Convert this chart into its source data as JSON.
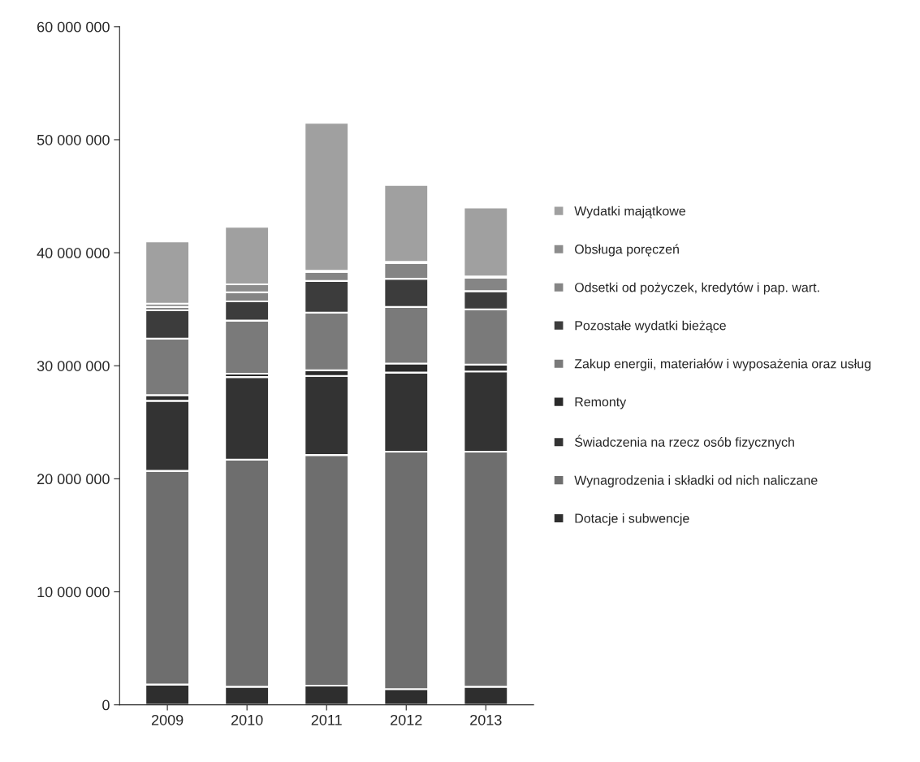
{
  "chart_data": {
    "type": "bar",
    "stacked": true,
    "legend": "right",
    "grid": false,
    "categories": [
      "2009",
      "2010",
      "2011",
      "2012",
      "2013"
    ],
    "ylim": [
      0,
      60000000
    ],
    "yticks": [
      {
        "value": 0,
        "label": "0"
      },
      {
        "value": 10000000,
        "label": "10 000 000"
      },
      {
        "value": 20000000,
        "label": "20 000 000"
      },
      {
        "value": 30000000,
        "label": "30 000 000"
      },
      {
        "value": 40000000,
        "label": "40 000 000"
      },
      {
        "value": 50000000,
        "label": "50 000 000"
      },
      {
        "value": 60000000,
        "label": "60 000 000"
      }
    ],
    "series": [
      {
        "name": "Dotacje i subwencje",
        "color": "#2e2e2e",
        "values": [
          1800000,
          1600000,
          1700000,
          1400000,
          1600000
        ]
      },
      {
        "name": "Wynagrodzenia i składki od nich naliczane",
        "color": "#6e6e6e",
        "values": [
          18900000,
          20100000,
          20400000,
          21000000,
          20800000
        ]
      },
      {
        "name": "Świadczenia na rzecz osób fizycznych",
        "color": "#333333",
        "values": [
          6200000,
          7300000,
          7000000,
          7000000,
          7100000
        ]
      },
      {
        "name": "Remonty",
        "color": "#2a2a2a",
        "values": [
          500000,
          300000,
          500000,
          800000,
          600000
        ]
      },
      {
        "name": "Zakup energii, materiałów i wyposażenia oraz usług",
        "color": "#7a7a7a",
        "values": [
          5000000,
          4700000,
          5100000,
          5000000,
          4900000
        ]
      },
      {
        "name": "Pozostałe wydatki bieżące",
        "color": "#3c3c3c",
        "values": [
          2500000,
          1700000,
          2800000,
          2500000,
          1600000
        ]
      },
      {
        "name": "Odsetki od pożyczek, kredytów i pap. wart.",
        "color": "#858585",
        "values": [
          300000,
          800000,
          800000,
          1400000,
          1200000
        ]
      },
      {
        "name": "Obsługa poręczeń",
        "color": "#8c8c8c",
        "values": [
          300000,
          700000,
          100000,
          100000,
          100000
        ]
      },
      {
        "name": "Wydatki majątkowe",
        "color": "#a0a0a0",
        "values": [
          5500000,
          5100000,
          13100000,
          6800000,
          6100000
        ]
      }
    ]
  }
}
